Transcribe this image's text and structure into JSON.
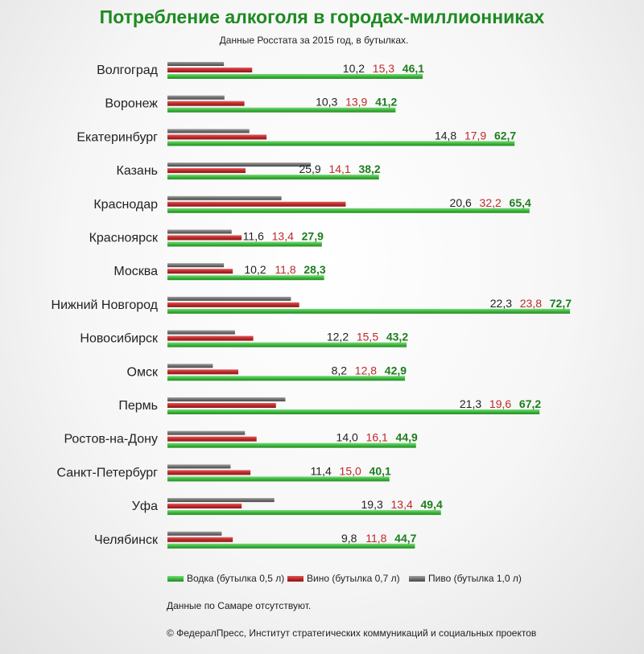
{
  "chart_data": {
    "type": "bar",
    "orientation": "horizontal",
    "title": "Потребление алкоголя в городах-миллионниках",
    "subtitle": "Данные Росстата за 2015 год, в бутылках.",
    "categories": [
      "Волгоград",
      "Воронеж",
      "Екатеринбург",
      "Казань",
      "Краснодар",
      "Красноярск",
      "Москва",
      "Нижний Новгород",
      "Новосибирск",
      "Омск",
      "Пермь",
      "Ростов-на-Дону",
      "Санкт-Петербург",
      "Уфа",
      "Челябинск"
    ],
    "series": [
      {
        "key": "beer",
        "name": "Пиво (бутылка 1,0 л)",
        "color": "#707070",
        "values": [
          10.2,
          10.3,
          14.8,
          25.9,
          20.6,
          11.6,
          10.2,
          22.3,
          12.2,
          8.2,
          21.3,
          14.0,
          11.4,
          19.3,
          9.8
        ],
        "labels": [
          "10,2",
          "10,3",
          "14,8",
          "25,9",
          "20,6",
          "11,6",
          "10,2",
          "22,3",
          "12,2",
          "8,2",
          "21,3",
          "14,0",
          "11,4",
          "19,3",
          "9,8"
        ]
      },
      {
        "key": "wine",
        "name": "Вино (бутылка 0,7 л)",
        "color": "#c0282a",
        "values": [
          15.3,
          13.9,
          17.9,
          14.1,
          32.2,
          13.4,
          11.8,
          23.8,
          15.5,
          12.8,
          19.6,
          16.1,
          15.0,
          13.4,
          11.8
        ],
        "labels": [
          "15,3",
          "13,9",
          "17,9",
          "14,1",
          "32,2",
          "13,4",
          "11,8",
          "23,8",
          "15,5",
          "12,8",
          "19,6",
          "16,1",
          "15,0",
          "13,4",
          "11,8"
        ]
      },
      {
        "key": "vodka",
        "name": "Водка (бутылка 0,5 л)",
        "color": "#3db83d",
        "values": [
          46.1,
          41.2,
          62.7,
          38.2,
          65.4,
          27.9,
          28.3,
          72.7,
          43.2,
          42.9,
          67.2,
          44.9,
          40.1,
          49.4,
          44.7
        ],
        "labels": [
          "46,1",
          "41,2",
          "62,7",
          "38,2",
          "65,4",
          "27,9",
          "28,3",
          "72,7",
          "43,2",
          "42,9",
          "67,2",
          "44,9",
          "40,1",
          "49,4",
          "44,7"
        ]
      }
    ],
    "legend_order": [
      "vodka",
      "wine",
      "beer"
    ],
    "label_colors": {
      "beer": "#222222",
      "wine": "#c0282a",
      "vodka": "#1e7d1e"
    },
    "xlim": [
      0,
      72.7
    ],
    "legend_position": "bottom",
    "note": "Данные по Самаре отсутствуют.",
    "source": "© ФедералПресс, Институт стратегических коммуникаций и социальных проектов"
  }
}
